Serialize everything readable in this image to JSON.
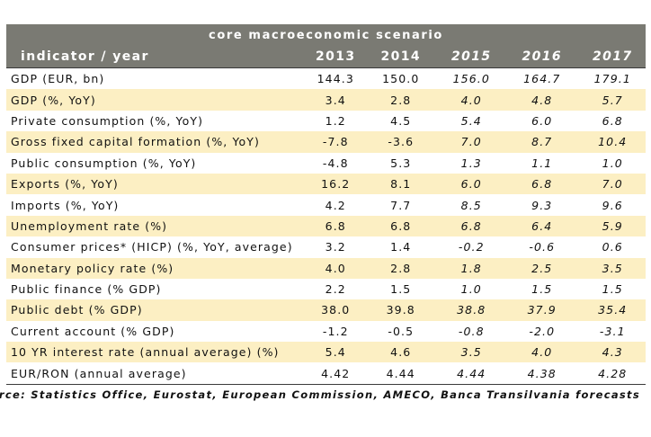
{
  "table": {
    "title": "core macroeconomic scenario",
    "header_label": "indicator / year",
    "years": [
      "2013",
      "2014",
      "2015",
      "2016",
      "2017"
    ],
    "rows": [
      {
        "label": "GDP (EUR, bn)",
        "values": [
          "144.3",
          "150.0",
          "156.0",
          "164.7",
          "179.1"
        ]
      },
      {
        "label": "GDP (%, YoY)",
        "values": [
          "3.4",
          "2.8",
          "4.0",
          "4.8",
          "5.7"
        ]
      },
      {
        "label": "Private consumption (%, YoY)",
        "values": [
          "1.2",
          "4.5",
          "5.4",
          "6.0",
          "6.8"
        ]
      },
      {
        "label": "Gross fixed capital formation (%, YoY)",
        "values": [
          "-7.8",
          "-3.6",
          "7.0",
          "8.7",
          "10.4"
        ]
      },
      {
        "label": "Public consumption (%, YoY)",
        "values": [
          "-4.8",
          "5.3",
          "1.3",
          "1.1",
          "1.0"
        ]
      },
      {
        "label": "Exports (%, YoY)",
        "values": [
          "16.2",
          "8.1",
          "6.0",
          "6.8",
          "7.0"
        ]
      },
      {
        "label": "Imports (%, YoY)",
        "values": [
          "4.2",
          "7.7",
          "8.5",
          "9.3",
          "9.6"
        ]
      },
      {
        "label": "Unemployment rate (%)",
        "values": [
          "6.8",
          "6.8",
          "6.8",
          "6.4",
          "5.9"
        ]
      },
      {
        "label": "Consumer prices* (HICP) (%, YoY, average)",
        "values": [
          "3.2",
          "1.4",
          "-0.2",
          "-0.6",
          "0.6"
        ]
      },
      {
        "label": "Monetary policy rate (%)",
        "values": [
          "4.0",
          "2.8",
          "1.8",
          "2.5",
          "3.5"
        ]
      },
      {
        "label": "Public finance (% GDP)",
        "values": [
          "2.2",
          "1.5",
          "1.0",
          "1.5",
          "1.5"
        ]
      },
      {
        "label": "Public debt (% GDP)",
        "values": [
          "38.0",
          "39.8",
          "38.8",
          "37.9",
          "35.4"
        ]
      },
      {
        "label": "Current account (% GDP)",
        "values": [
          "-1.2",
          "-0.5",
          "-0.8",
          "-2.0",
          "-3.1"
        ]
      },
      {
        "label": "10 YR interest rate (annual average) (%)",
        "values": [
          "5.4",
          "4.6",
          "3.5",
          "4.0",
          "4.3"
        ]
      },
      {
        "label": "EUR/RON (annual average)",
        "values": [
          "4.42",
          "4.44",
          "4.44",
          "4.38",
          "4.28"
        ]
      }
    ]
  },
  "colors": {
    "header_bg": "#7a7a73",
    "shade_bg": "#fcefc3"
  },
  "source": "Source: Statistics Office, Eurostat, European Commission, AMECO, Banca Transilvania forecasts"
}
